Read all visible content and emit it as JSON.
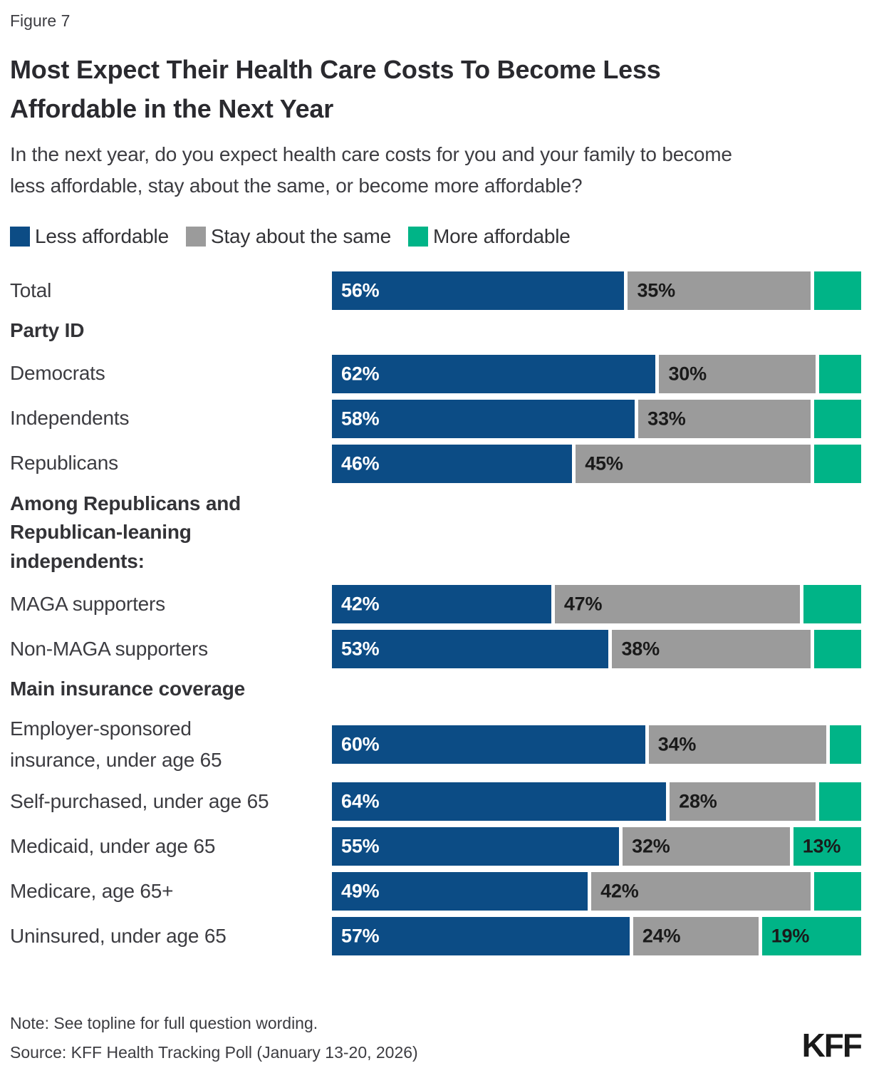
{
  "figure_label": "Figure 7",
  "title": "Most Expect Their Health Care Costs To Become Less Affordable in the Next Year",
  "subtitle": "In the next year, do you expect health care costs for you and your family to become less affordable, stay about the same, or become more affordable?",
  "note": "Note: See topline for full question wording.",
  "source": "Source: KFF Health Tracking Poll (January 13-20, 2026)",
  "logo_text": "KFF",
  "colors": {
    "less_affordable": "#0C4C85",
    "stay_same": "#9B9B9B",
    "more_affordable": "#00B487",
    "label_on_blue": "#FFFFFF",
    "label_on_light": "#1A1A1A"
  },
  "chart_data": {
    "type": "bar",
    "orientation": "horizontal_stacked",
    "unit": "percent",
    "xlim": [
      0,
      100
    ],
    "grid": false,
    "legend_position": "top",
    "series": [
      {
        "key": "less-affordable",
        "name": "Less affordable",
        "color": "#0C4C85",
        "label_color": "#FFFFFF"
      },
      {
        "key": "stay-about-the-same",
        "name": "Stay about the same",
        "color": "#9B9B9B",
        "label_color": "#1A1A1A"
      },
      {
        "key": "more-affordable",
        "name": "More affordable",
        "color": "#00B487",
        "label_color": "#1A1A1A"
      }
    ],
    "groups": [
      {
        "header": null,
        "rows": [
          {
            "label": "Total",
            "values": [
              56,
              35,
              9
            ],
            "value_labels": [
              "56%",
              "35%",
              ""
            ]
          }
        ]
      },
      {
        "header": "Party ID",
        "rows": [
          {
            "label": "Democrats",
            "values": [
              62,
              30,
              8
            ],
            "value_labels": [
              "62%",
              "30%",
              ""
            ]
          },
          {
            "label": "Independents",
            "values": [
              58,
              33,
              9
            ],
            "value_labels": [
              "58%",
              "33%",
              ""
            ]
          },
          {
            "label": "Republicans",
            "values": [
              46,
              45,
              9
            ],
            "value_labels": [
              "46%",
              "45%",
              ""
            ]
          }
        ]
      },
      {
        "header": "Among Republicans and Republican-leaning independents:",
        "rows": [
          {
            "label": "MAGA supporters",
            "values": [
              42,
              47,
              11
            ],
            "value_labels": [
              "42%",
              "47%",
              ""
            ]
          },
          {
            "label": "Non-MAGA supporters",
            "values": [
              53,
              38,
              9
            ],
            "value_labels": [
              "53%",
              "38%",
              ""
            ]
          }
        ]
      },
      {
        "header": "Main insurance coverage",
        "rows": [
          {
            "label": "Employer-sponsored\ninsurance, under age 65",
            "values": [
              60,
              34,
              6
            ],
            "value_labels": [
              "60%",
              "34%",
              ""
            ]
          },
          {
            "label": "Self-purchased, under age 65",
            "values": [
              64,
              28,
              8
            ],
            "value_labels": [
              "64%",
              "28%",
              ""
            ]
          },
          {
            "label": "Medicaid, under age 65",
            "values": [
              55,
              32,
              13
            ],
            "value_labels": [
              "55%",
              "32%",
              "13%"
            ]
          },
          {
            "label": "Medicare, age 65+",
            "values": [
              49,
              42,
              9
            ],
            "value_labels": [
              "49%",
              "42%",
              ""
            ]
          },
          {
            "label": "Uninsured, under age 65",
            "values": [
              57,
              24,
              19
            ],
            "value_labels": [
              "57%",
              "24%",
              "19%"
            ]
          }
        ]
      }
    ]
  }
}
